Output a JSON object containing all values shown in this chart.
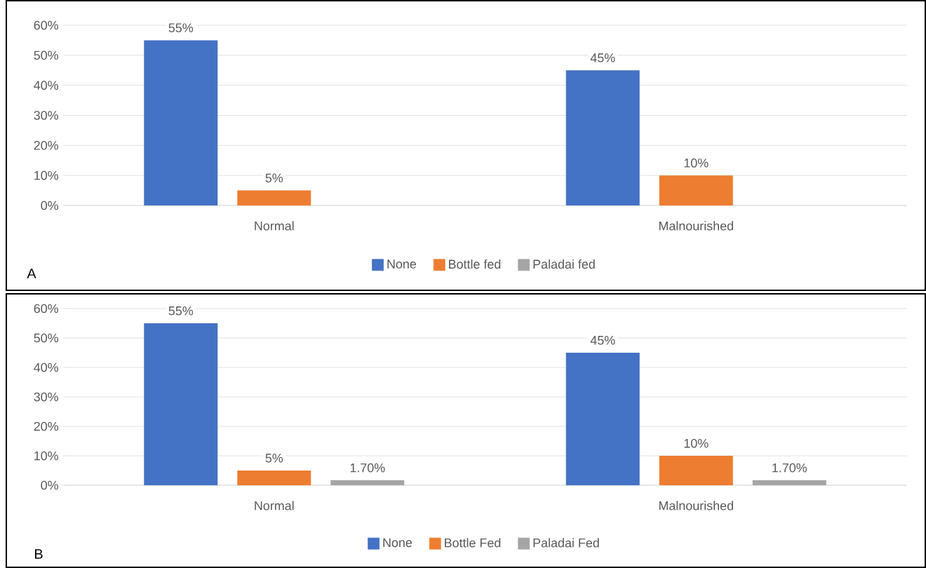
{
  "chart_data": [
    {
      "type": "bar",
      "categories": [
        "Normal",
        "Malnourished"
      ],
      "series": [
        {
          "name": "None",
          "color": "#4472c4",
          "values": [
            55,
            45
          ],
          "value_labels": [
            "55%",
            "45%"
          ]
        },
        {
          "name": "Bottle fed",
          "color": "#ed7d31",
          "values": [
            5,
            10
          ],
          "value_labels": [
            "5%",
            "10%"
          ]
        },
        {
          "name": "Paladai fed",
          "color": "#a5a5a5",
          "values": [
            null,
            null
          ]
        }
      ],
      "ylim": [
        0,
        60
      ],
      "yticks": [
        {
          "value": 0,
          "label": "0%"
        },
        {
          "value": 10,
          "label": "10%"
        },
        {
          "value": 20,
          "label": "20%"
        },
        {
          "value": 30,
          "label": "30%"
        },
        {
          "value": 40,
          "label": "40%"
        },
        {
          "value": 50,
          "label": "50%"
        },
        {
          "value": 60,
          "label": "60%"
        }
      ],
      "grid": "y",
      "legend": "bottom",
      "annotations": [
        "A"
      ]
    },
    {
      "type": "bar",
      "categories": [
        "Normal",
        "Malnourished"
      ],
      "series": [
        {
          "name": "None",
          "color": "#4472c4",
          "values": [
            55,
            45
          ],
          "value_labels": [
            "55%",
            "45%"
          ]
        },
        {
          "name": "Bottle Fed",
          "color": "#ed7d31",
          "values": [
            5,
            10
          ],
          "value_labels": [
            "5%",
            "10%"
          ]
        },
        {
          "name": "Paladai Fed",
          "color": "#a5a5a5",
          "values": [
            1.7,
            1.7
          ],
          "value_labels": [
            "1.70%",
            "1.70%"
          ]
        }
      ],
      "ylim": [
        0,
        60
      ],
      "yticks": [
        {
          "value": 0,
          "label": "0%"
        },
        {
          "value": 10,
          "label": "10%"
        },
        {
          "value": 20,
          "label": "20%"
        },
        {
          "value": 30,
          "label": "30%"
        },
        {
          "value": 40,
          "label": "40%"
        },
        {
          "value": 50,
          "label": "50%"
        },
        {
          "value": 60,
          "label": "60%"
        }
      ],
      "grid": "y",
      "legend": "bottom",
      "annotations": [
        "B"
      ]
    }
  ]
}
